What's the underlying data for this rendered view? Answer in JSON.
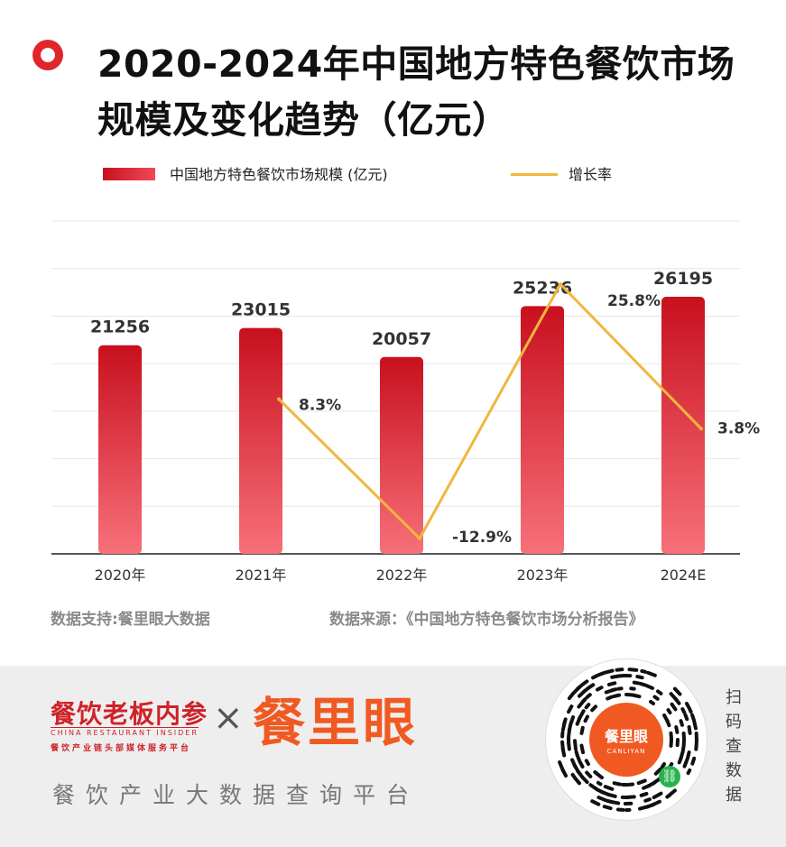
{
  "title": "2020-2024年中国地方特色餐饮市场规模及变化趋势（亿元）",
  "legend": {
    "bar_label": "中国地方特色餐饮市场规模 (亿元)",
    "line_label": "增长率"
  },
  "source_left": "数据支持:餐里眼大数据",
  "source_right": "数据来源：《中国地方特色餐饮市场分析报告》",
  "footer": {
    "brand1": "餐饮老板内参",
    "brand1_en": "CHINA RESTAURANT INSIDER",
    "brand1_sub": "餐饮产业链头部媒体服务平台",
    "cross": "×",
    "brand2": "餐里眼",
    "tagline": "餐饮产业大数据查询平台",
    "qr_center": "餐里眼",
    "qr_center_en": "CANLIYAN",
    "scan_text": "扫码查数据"
  },
  "colors": {
    "bar_top": "#c8101e",
    "bar_bottom": "#f7707a",
    "line": "#f1b63f",
    "accent": "#e0252b",
    "brand_orange": "#f05a22"
  },
  "chart_data": {
    "type": "bar",
    "categories": [
      "2020年",
      "2021年",
      "2022年",
      "2023年",
      "2024E"
    ],
    "series": [
      {
        "name": "中国地方特色餐饮市场规模 (亿元)",
        "type": "bar",
        "values": [
          21256,
          23015,
          20057,
          25236,
          26195
        ],
        "labels": [
          "21256",
          "23015",
          "20057",
          "25236",
          "26195"
        ]
      },
      {
        "name": "增长率",
        "type": "line",
        "values": [
          null,
          8.3,
          -12.9,
          25.8,
          3.8
        ],
        "labels": [
          "",
          "8.3%",
          "-12.9%",
          "25.8%",
          "3.8%"
        ]
      }
    ],
    "grid": true,
    "legend_position": "top"
  }
}
